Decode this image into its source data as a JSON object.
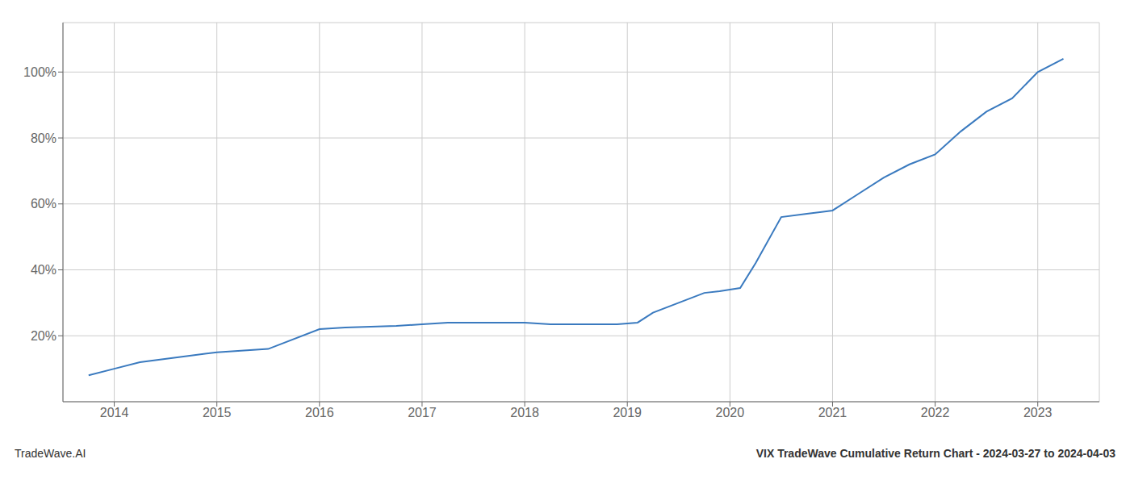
{
  "chart_data": {
    "type": "line",
    "title": "VIX TradeWave Cumulative Return Chart - 2024-03-27 to 2024-04-03",
    "annotations": [
      "TradeWave.AI"
    ],
    "color": "#3a7abf",
    "grid": true,
    "x": [
      2013.75,
      2014.0,
      2014.25,
      2014.75,
      2015.0,
      2015.5,
      2016.0,
      2016.25,
      2016.75,
      2017.0,
      2017.25,
      2017.75,
      2018.0,
      2018.25,
      2018.5,
      2018.75,
      2018.9,
      2019.1,
      2019.25,
      2019.5,
      2019.75,
      2019.9,
      2020.0,
      2020.1,
      2020.25,
      2020.5,
      2020.75,
      2021.0,
      2021.25,
      2021.5,
      2021.75,
      2022.0,
      2022.25,
      2022.5,
      2022.75,
      2023.0,
      2023.25
    ],
    "values": [
      8,
      10,
      12,
      14,
      15,
      16,
      22,
      22.5,
      23,
      23.5,
      24,
      24,
      24,
      23.5,
      23.5,
      23.5,
      23.5,
      24,
      27,
      30,
      33,
      33.5,
      34,
      34.5,
      42,
      56,
      57,
      58,
      63,
      68,
      72,
      75,
      82,
      88,
      92,
      100,
      104
    ],
    "xlim": [
      2013.5,
      2023.6
    ],
    "xticks": [
      2014,
      2015,
      2016,
      2017,
      2018,
      2019,
      2020,
      2021,
      2022,
      2023
    ],
    "ylim": [
      0,
      115
    ],
    "yticks": [
      {
        "value": 20,
        "label": "20%"
      },
      {
        "value": 40,
        "label": "40%"
      },
      {
        "value": 60,
        "label": "60%"
      },
      {
        "value": 80,
        "label": "80%"
      },
      {
        "value": 100,
        "label": "100%"
      }
    ]
  }
}
